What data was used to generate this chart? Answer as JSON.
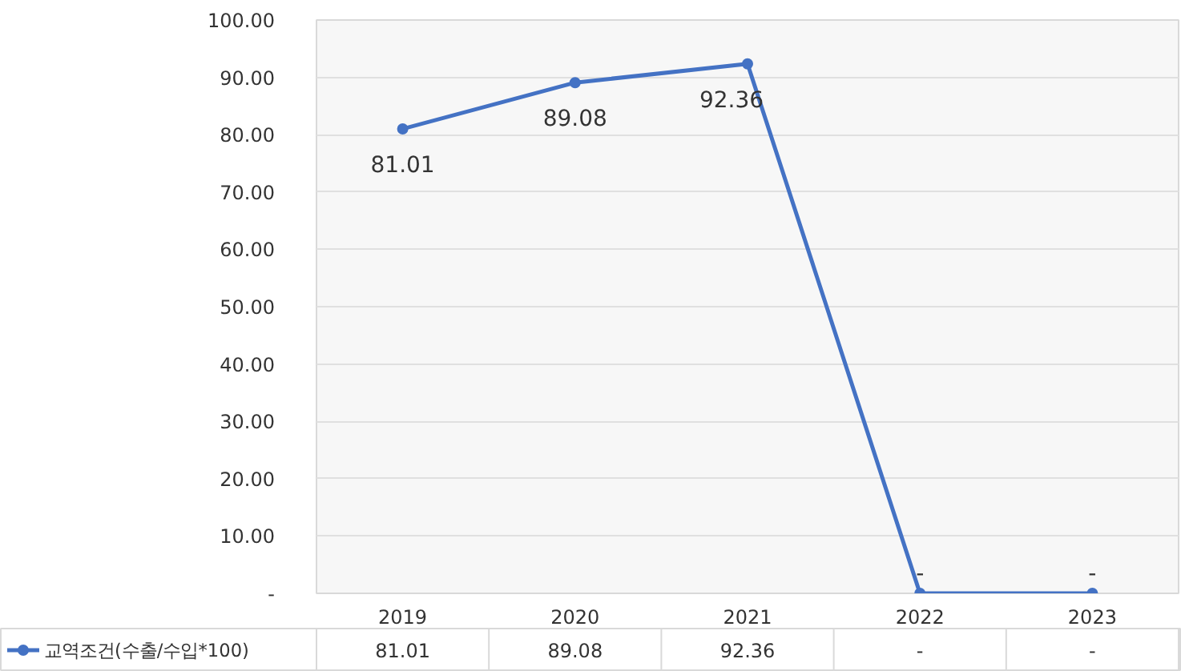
{
  "chart_data": {
    "type": "line",
    "categories": [
      "2019",
      "2020",
      "2021",
      "2022",
      "2023"
    ],
    "series": [
      {
        "name": "교역조건(수출/수입*100)",
        "color": "#4472c4",
        "values": [
          81.01,
          89.08,
          92.36,
          0,
          0
        ],
        "value_labels": [
          "81.01",
          "89.08",
          "92.36",
          "-",
          "-"
        ]
      }
    ],
    "ylim": [
      0,
      100
    ],
    "yticks": [
      {
        "value": 0,
        "label": "-"
      },
      {
        "value": 10,
        "label": "10.00"
      },
      {
        "value": 20,
        "label": "20.00"
      },
      {
        "value": 30,
        "label": "30.00"
      },
      {
        "value": 40,
        "label": "40.00"
      },
      {
        "value": 50,
        "label": "50.00"
      },
      {
        "value": 60,
        "label": "60.00"
      },
      {
        "value": 70,
        "label": "70.00"
      },
      {
        "value": 80,
        "label": "80.00"
      },
      {
        "value": 90,
        "label": "90.00"
      },
      {
        "value": 100,
        "label": "100.00"
      }
    ],
    "grid": "y",
    "legend": "bottom left",
    "marker": "circle",
    "line_style": "solid"
  }
}
